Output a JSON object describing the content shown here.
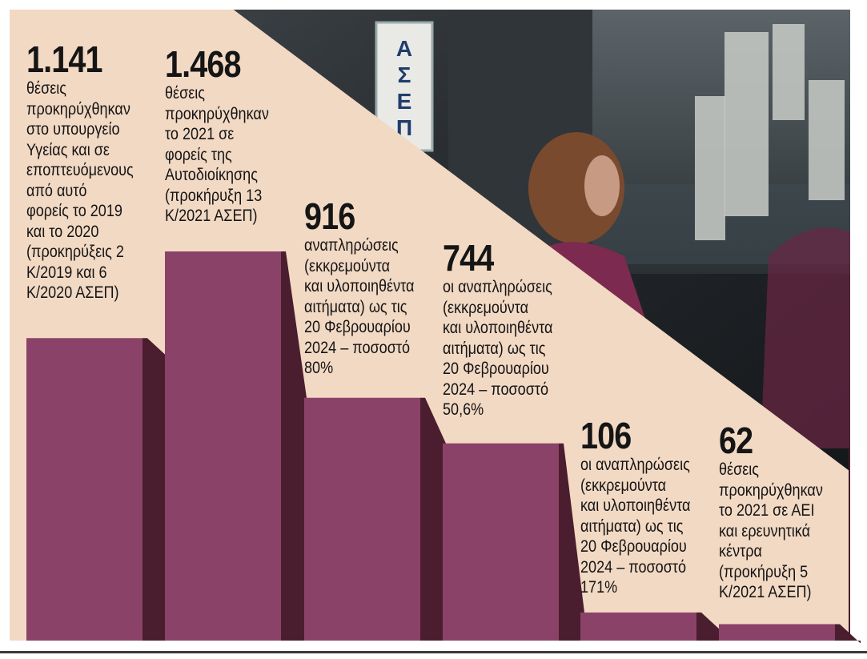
{
  "chart_data": {
    "type": "bar",
    "categories": [
      "1.141",
      "1.468",
      "916",
      "744",
      "106",
      "62"
    ],
    "values": [
      1141,
      1468,
      916,
      744,
      106,
      62
    ],
    "value_labels": [
      "1.141",
      "1.468",
      "916",
      "744",
      "106",
      "62"
    ],
    "descriptions": [
      "θέσεις\nπροκηρύχθηκαν\nστο υπουργείο\nΥγείας και σε\nεποπτευόμενους\nαπό αυτό\nφορείς το 2019\nκαι το 2020\n(προκηρύξεις 2\nΚ/2019 και 6\nΚ/2020 ΑΣΕΠ)",
      "θέσεις\nπροκηρύχθηκαν\nτο 2021 σε\nφορείς της\nΑυτοδιοίκησης\n(προκήρυξη 13\nΚ/2021 ΑΣΕΠ)",
      "αναπληρώσεις\n(εκκρεμούντα\nκαι υλοποιηθέντα\nαιτήματα) ως τις\n20 Φεβρουαρίου\n2024 – ποσοστό\n80%",
      "οι αναπληρώσεις\n(εκκρεμούντα\nκαι υλοποιηθέντα\nαιτήματα) ως τις\n20 Φεβρουαρίου\n2024 – ποσοστό\n50,6%",
      "οι αναπληρώσεις\n(εκκρεμούντα\nκαι υλοποιηθέντα\nαιτήματα) ως τις\n20 Φεβρουαρίου\n2024 – ποσοστό\n171%",
      "θέσεις\nπροκηρύχθηκαν\nτο 2021 σε ΑΕΙ\nκαι ερευνητικά\nκέντρα\n(προκήρυξη 5\nΚ/2021 ΑΣΕΠ)"
    ],
    "ylim": [
      0,
      1500
    ],
    "grid": false,
    "legend": "none"
  },
  "photo": {
    "sign_letters": [
      "Α",
      "Σ",
      "Ε",
      "Π"
    ]
  },
  "colors": {
    "background": "#f2d9c4",
    "bar_front": "#8b4268",
    "bar_shadow": "#4a1e2e",
    "photo_dark": "#2b2f33",
    "text": "#151515"
  }
}
